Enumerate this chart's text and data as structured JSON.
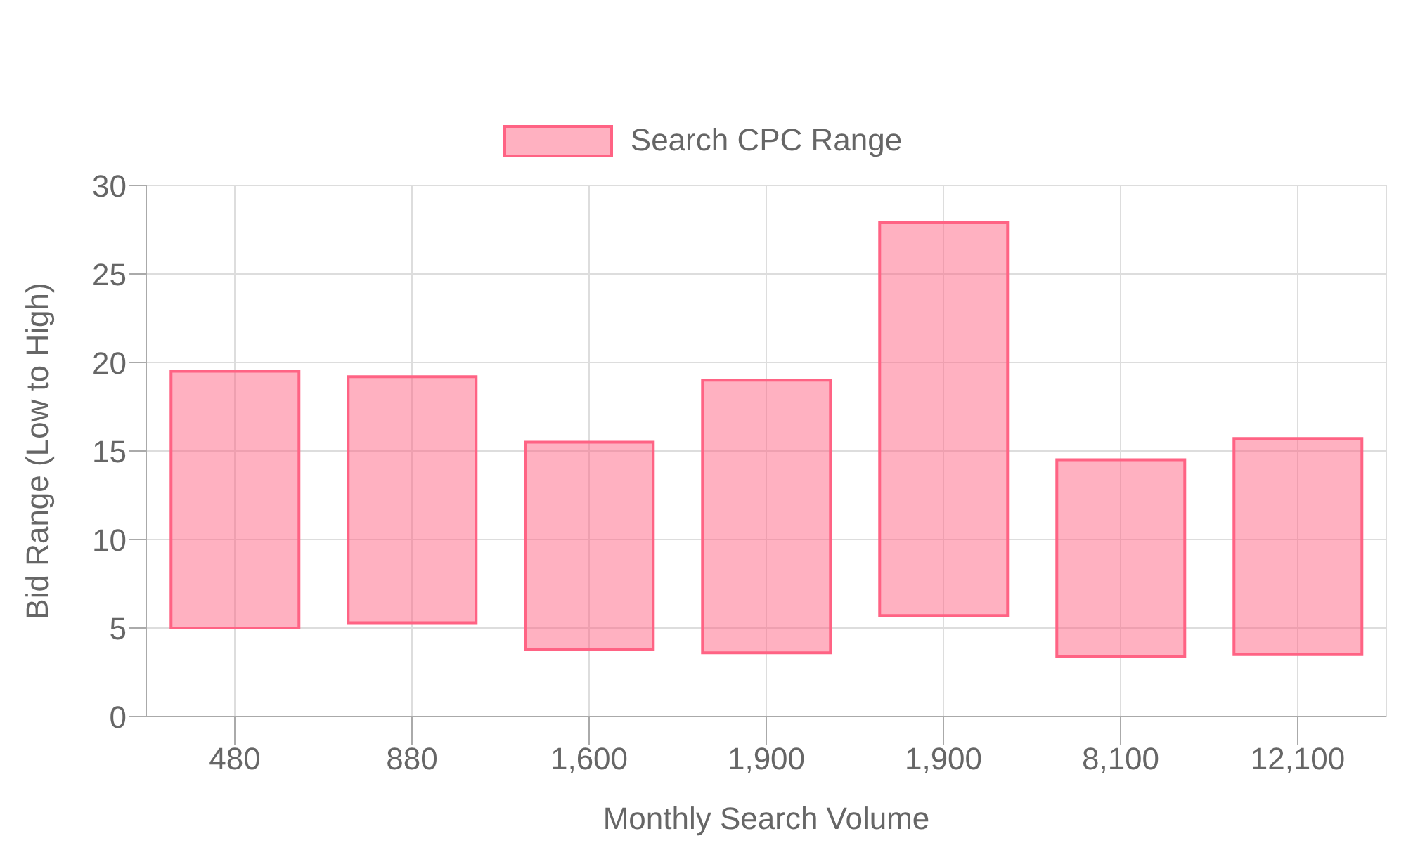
{
  "chart_data": {
    "type": "bar",
    "xlabel": "Monthly Search Volume",
    "ylabel": "Bid Range (Low to High)",
    "categories": [
      "480",
      "880",
      "1,600",
      "1,900",
      "1,900",
      "8,100",
      "12,100"
    ],
    "series": [
      {
        "name": "Search CPC Range",
        "color": "#ff6384",
        "values": [
          14.5,
          13.9,
          11.7,
          15.4,
          22.2,
          11.1,
          12.2
        ],
        "base": [
          5,
          5.3,
          3.8,
          3.6,
          5.7,
          3.4,
          3.5
        ]
      }
    ],
    "ylim": [
      0,
      30
    ],
    "yticks": [
      0,
      5,
      10,
      15,
      20,
      25,
      30
    ],
    "grid": true,
    "legend": "top"
  }
}
